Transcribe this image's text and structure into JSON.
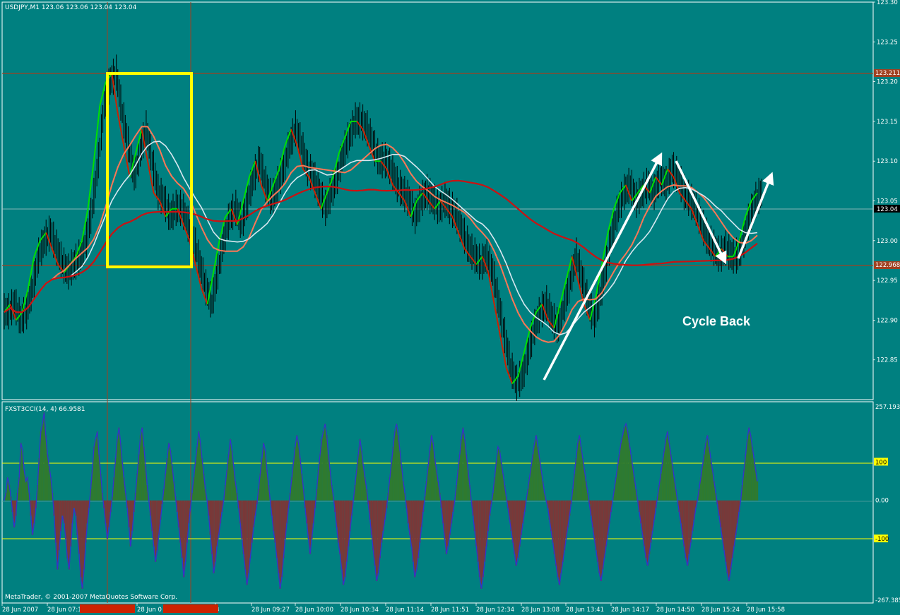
{
  "window": {
    "symbol_label": "USDJPY,M1  123.06 123.06 123.04 123.04",
    "copyright": "MetaTrader, © 2001-2007 MetaQuotes Software Corp."
  },
  "colors": {
    "background": "#008080",
    "yellow_box": "#ffff00",
    "green_wave": "#00e000",
    "red_wave": "#cc2200",
    "white_ma": "#d8e8f0",
    "salmon_ma": "#ff7755",
    "blue_ma": "#0000cc",
    "red_ma": "#cc1111",
    "level_line": "#a04020",
    "cci_positive": "#2f7a2f",
    "cci_negative": "#7a3838",
    "cci_line": "#3333cc"
  },
  "chart_data": [
    {
      "type": "line",
      "name": "price",
      "x_ticks": [
        "28 Jun 2007",
        "28 Jun 07:1",
        "",
        "28 Jun 0",
        "",
        "3",
        "28 Jun 09:27",
        "28 Jun 10:00",
        "28 Jun 10:34",
        "28 Jun 11:14",
        "28 Jun 11:51",
        "28 Jun 12:34",
        "28 Jun 13:08",
        "28 Jun 13:41",
        "28 Jun 14:17",
        "28 Jun 14:50",
        "28 Jun 15:24",
        "28 Jun 15:58"
      ],
      "y_ticks": [
        "123.30",
        "123.25",
        "123.20",
        "123.15",
        "123.10",
        "123.05",
        "123.00",
        "122.95",
        "122.90",
        "122.85"
      ],
      "ylim": [
        122.8,
        123.3
      ],
      "current_price": "123.04",
      "level_high": "123.211",
      "level_low": "122.968",
      "series_close": [
        122.91,
        122.92,
        122.9,
        122.91,
        122.94,
        122.98,
        123.0,
        123.01,
        122.99,
        122.97,
        122.96,
        122.97,
        122.98,
        123.0,
        123.04,
        123.1,
        123.17,
        123.2,
        123.21,
        123.16,
        123.12,
        123.08,
        123.11,
        123.14,
        123.1,
        123.06,
        123.05,
        123.03,
        123.04,
        123.04,
        123.02,
        123.0,
        122.97,
        122.94,
        122.92,
        122.96,
        123.0,
        123.03,
        123.04,
        123.02,
        123.05,
        123.08,
        123.1,
        123.07,
        123.05,
        123.07,
        123.09,
        123.12,
        123.14,
        123.12,
        123.09,
        123.08,
        123.06,
        123.04,
        123.06,
        123.08,
        123.11,
        123.13,
        123.15,
        123.15,
        123.14,
        123.12,
        123.1,
        123.1,
        123.09,
        123.07,
        123.06,
        123.05,
        123.03,
        123.05,
        123.06,
        123.05,
        123.04,
        123.05,
        123.04,
        123.03,
        123.01,
        122.99,
        122.98,
        122.97,
        122.98,
        122.96,
        122.92,
        122.88,
        122.84,
        122.82,
        122.83,
        122.86,
        122.89,
        122.91,
        122.92,
        122.9,
        122.89,
        122.92,
        122.95,
        122.98,
        122.95,
        122.92,
        122.9,
        122.93,
        122.97,
        123.01,
        123.04,
        123.06,
        123.07,
        123.05,
        123.06,
        123.07,
        123.06,
        123.08,
        123.07,
        123.09,
        123.08,
        123.06,
        123.05,
        123.04,
        123.02,
        123.0,
        122.99,
        122.98,
        122.99,
        122.98,
        122.98,
        123.0,
        123.03,
        123.05,
        123.06
      ],
      "annotation": "Cycle Back"
    },
    {
      "type": "area",
      "name": "cci",
      "label": "FXST3CCI(14, 4) 66.9581",
      "y_ticks": [
        "257.193",
        "100",
        "0.00",
        "-100",
        "-267.385"
      ],
      "ylim": [
        -267.385,
        257.193
      ],
      "levels": [
        100,
        0,
        -100
      ],
      "values": [
        0,
        20,
        60,
        40,
        10,
        -30,
        -70,
        -40,
        20,
        60,
        150,
        130,
        80,
        50,
        60,
        20,
        -40,
        -90,
        -60,
        -20,
        40,
        110,
        180,
        200,
        230,
        170,
        120,
        90,
        60,
        20,
        -40,
        -110,
        -180,
        -130,
        -80,
        -40,
        -60,
        -100,
        -150,
        -180,
        -120,
        -60,
        -20,
        -40,
        -90,
        -140,
        -200,
        -230,
        -180,
        -110,
        -60,
        -20,
        30,
        80,
        140,
        160,
        180,
        120,
        70,
        20,
        -20,
        -60,
        -100,
        -70,
        -30,
        10,
        60,
        110,
        160,
        190,
        150,
        100,
        60,
        20,
        -20,
        -70,
        -120,
        -80,
        -30,
        20,
        70,
        120,
        170,
        190,
        140,
        90,
        40,
        0,
        -40,
        -80,
        -120,
        -160,
        -130,
        -90,
        -50,
        -10,
        30,
        70,
        110,
        150,
        130,
        90,
        50,
        10,
        -30,
        -70,
        -110,
        -150,
        -200,
        -160,
        -110,
        -60,
        -20,
        20,
        60,
        100,
        140,
        180,
        150,
        110,
        70,
        30,
        0,
        -40,
        -90,
        -140,
        -190,
        -160,
        -120,
        -90,
        -60,
        -30,
        0,
        40,
        80,
        120,
        160,
        130,
        90,
        50,
        20,
        -20,
        -60,
        -100,
        -140,
        -180,
        -220,
        -190,
        -150,
        -110,
        -70,
        -40,
        -10,
        30,
        70,
        110,
        150,
        130,
        80,
        40,
        0,
        -40,
        -80,
        -110,
        -150,
        -190,
        -230,
        -200,
        -150,
        -100,
        -60,
        -20,
        20,
        60,
        100,
        140,
        170,
        150,
        110,
        70,
        30,
        -20,
        -60,
        -100,
        -140,
        -100,
        -60,
        -20,
        30,
        80,
        120,
        160,
        180,
        200,
        170,
        120,
        80,
        40,
        10,
        -30,
        -70,
        -110,
        -140,
        -180,
        -220,
        -200,
        -160,
        -120,
        -80,
        -40,
        0,
        40,
        80,
        120,
        160,
        130,
        90,
        60,
        30,
        -10,
        -50,
        -90,
        -130,
        -170,
        -210,
        -190,
        -150,
        -110,
        -80,
        -50,
        -20,
        20,
        60,
        100,
        140,
        180,
        200,
        170,
        130,
        90,
        50,
        20,
        -20,
        -60,
        -90,
        -120,
        -160,
        -200,
        -180,
        -150,
        -110,
        -70,
        -30,
        10,
        50,
        90,
        130,
        170,
        150,
        110,
        80,
        50,
        20,
        -20,
        -60,
        -100,
        -140,
        -120,
        -90,
        -60,
        -30,
        0,
        40,
        80,
        120,
        160,
        190,
        160,
        120,
        80,
        40,
        0,
        -40,
        -80,
        -120,
        -160,
        -200,
        -230,
        -200,
        -160,
        -120,
        -80,
        -40,
        -10,
        20,
        60,
        100,
        140,
        130,
        100,
        70,
        40,
        10,
        -20,
        -50,
        -80,
        -110,
        -140,
        -170,
        -150,
        -120,
        -90,
        -60,
        -30,
        0,
        30,
        60,
        90,
        120,
        150,
        170,
        140,
        110,
        80,
        50,
        20,
        0,
        -20,
        -50,
        -80,
        -110,
        -140,
        -170,
        -200,
        -220,
        -190,
        -160,
        -130,
        -100,
        -70,
        -40,
        -10,
        30,
        70,
        110,
        150,
        170,
        140,
        110,
        80,
        50,
        20,
        -10,
        -40,
        -70,
        -100,
        -130,
        -160,
        -190,
        -210,
        -180,
        -150,
        -120,
        -90,
        -60,
        -30,
        0,
        30,
        60,
        90,
        120,
        150,
        170,
        190,
        200,
        180,
        150,
        120,
        90,
        60,
        30,
        0,
        -30,
        -60,
        -90,
        -120,
        -150,
        -170,
        -140,
        -110,
        -80,
        -50,
        -20,
        10,
        40,
        70,
        100,
        130,
        160,
        180,
        150,
        120,
        90,
        60,
        30,
        0,
        -30,
        -60,
        -90,
        -120,
        -150,
        -170,
        -140,
        -110,
        -80,
        -50,
        -20,
        0,
        30,
        60,
        90,
        120,
        150,
        170,
        140,
        110,
        80,
        50,
        20,
        -10,
        -40,
        -70,
        -100,
        -130,
        -160,
        -190,
        -210,
        -180,
        -150,
        -120,
        -90,
        -60,
        -30,
        0,
        40,
        80,
        120,
        160,
        190,
        170,
        140,
        110,
        80,
        50
      ]
    }
  ]
}
